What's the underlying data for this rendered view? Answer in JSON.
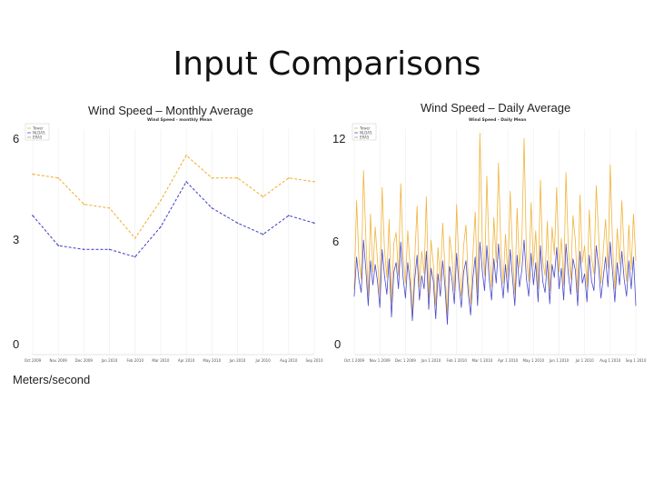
{
  "slide": {
    "title": "Input Comparisons",
    "units": "Meters/second"
  },
  "chart_data": [
    {
      "type": "line",
      "title": "Wind Speed – Monthly Average",
      "inner_title": "Wind Speed - monthly Mean",
      "ylabel_big_ticks": [
        "6",
        "3",
        "0"
      ],
      "ylim": [
        0,
        6
      ],
      "categories": [
        "Oct 2009",
        "Nov 2009",
        "Dec 2009",
        "Jan 2010",
        "Feb 2010",
        "Mar 2010",
        "Apr 2010",
        "May 2010",
        "Jun 2010",
        "Jul 2010",
        "Aug 2010",
        "Sep 2010"
      ],
      "legend": [
        "Tower",
        "NLDAS",
        "ERA5"
      ],
      "colors": {
        "orange": "#f0b43c",
        "blue": "#4b4bc8"
      },
      "series": [
        {
          "name": "Tower",
          "color": "#f0b43c",
          "values": [
            4.8,
            4.7,
            4.0,
            3.9,
            3.1,
            4.1,
            5.3,
            4.7,
            4.7,
            4.2,
            4.7,
            4.6
          ]
        },
        {
          "name": "NLDAS",
          "color": "#4b4bc8",
          "values": [
            3.7,
            2.9,
            2.8,
            2.8,
            2.6,
            3.4,
            4.6,
            3.9,
            3.5,
            3.2,
            3.7,
            3.5
          ]
        }
      ]
    },
    {
      "type": "line",
      "title": "Wind Speed – Daily Average",
      "inner_title": "Wind Speed - Daily Mean",
      "ylabel_big_ticks": [
        "12",
        "6",
        "0"
      ],
      "ylim": [
        0,
        12
      ],
      "legend": [
        "Tower",
        "NLDAS",
        "ERA5"
      ],
      "colors": {
        "orange": "#f0b43c",
        "blue": "#4b4bc8"
      },
      "x_tick_labels": [
        "Oct 1 2009",
        "Nov 1 2009",
        "Dec 1 2009",
        "Jan 1 2010",
        "Feb 1 2010",
        "Mar 1 2010",
        "Apr 1 2010",
        "May 1 2010",
        "Jun 1 2010",
        "Jul 1 2010",
        "Aug 1 2010",
        "Sep 1 2010"
      ],
      "series": [
        {
          "name": "Tower",
          "color": "#f0b43c",
          "values": [
            3.5,
            8.2,
            5.1,
            4.0,
            9.8,
            6.2,
            3.1,
            7.5,
            4.4,
            6.8,
            5.0,
            3.2,
            8.9,
            5.6,
            4.1,
            7.2,
            2.8,
            5.9,
            6.5,
            4.2,
            9.1,
            5.3,
            3.8,
            6.6,
            4.7,
            2.2,
            5.1,
            7.9,
            3.6,
            5.5,
            4.3,
            8.4,
            3.0,
            6.1,
            4.8,
            2.6,
            5.7,
            3.9,
            7.0,
            4.5,
            2.1,
            6.3,
            5.2,
            3.4,
            8.0,
            4.6,
            3.1,
            5.8,
            6.9,
            4.0,
            2.7,
            5.4,
            7.6,
            3.3,
            11.8,
            6.0,
            4.2,
            9.5,
            5.1,
            3.6,
            7.3,
            4.9,
            10.2,
            5.7,
            3.8,
            6.4,
            4.1,
            8.7,
            5.5,
            3.2,
            7.8,
            4.6,
            6.0,
            11.5,
            5.2,
            3.9,
            8.1,
            4.7,
            6.6,
            3.5,
            9.3,
            5.0,
            4.2,
            7.1,
            3.4,
            6.8,
            5.3,
            8.9,
            4.4,
            6.2,
            3.7,
            9.7,
            5.6,
            4.0,
            7.4,
            6.1,
            3.3,
            8.5,
            4.9,
            5.8,
            3.6,
            7.7,
            5.1,
            4.3,
            9.0,
            6.4,
            3.8,
            5.5,
            7.2,
            4.6,
            10.1,
            5.9,
            3.5,
            6.7,
            4.8,
            8.2,
            5.3,
            3.9,
            6.9,
            4.5,
            7.5,
            5.0
          ]
        },
        {
          "name": "NLDAS",
          "color": "#4b4bc8",
          "values": [
            3.1,
            5.2,
            4.0,
            3.3,
            6.1,
            4.5,
            2.6,
            5.0,
            3.7,
            4.8,
            3.9,
            2.5,
            5.6,
            4.2,
            3.2,
            5.1,
            2.0,
            4.4,
            4.9,
            3.5,
            6.0,
            4.1,
            3.0,
            4.9,
            3.8,
            1.8,
            4.0,
            5.3,
            2.9,
            4.2,
            3.5,
            5.5,
            2.4,
            4.6,
            3.9,
            1.9,
            4.3,
            3.1,
            5.0,
            3.6,
            1.6,
            4.7,
            4.0,
            2.7,
            5.4,
            3.7,
            2.5,
            4.4,
            5.0,
            3.3,
            2.1,
            4.1,
            5.2,
            2.6,
            6.0,
            4.5,
            3.4,
            5.8,
            4.0,
            2.9,
            5.1,
            3.8,
            5.9,
            4.3,
            3.0,
            4.8,
            3.3,
            5.6,
            4.1,
            2.6,
            5.3,
            3.6,
            4.5,
            6.1,
            4.0,
            3.1,
            5.4,
            3.7,
            4.9,
            2.8,
            5.8,
            3.9,
            3.3,
            5.0,
            2.7,
            4.8,
            4.1,
            5.7,
            3.5,
            4.6,
            2.9,
            5.9,
            4.3,
            3.2,
            5.1,
            4.5,
            2.6,
            5.5,
            3.8,
            4.3,
            2.8,
            5.3,
            3.9,
            3.4,
            5.8,
            4.7,
            3.0,
            4.1,
            5.2,
            3.6,
            6.0,
            4.4,
            2.8,
            4.9,
            3.7,
            5.5,
            4.0,
            3.1,
            5.0,
            3.5,
            5.2,
            2.6
          ]
        }
      ]
    }
  ]
}
